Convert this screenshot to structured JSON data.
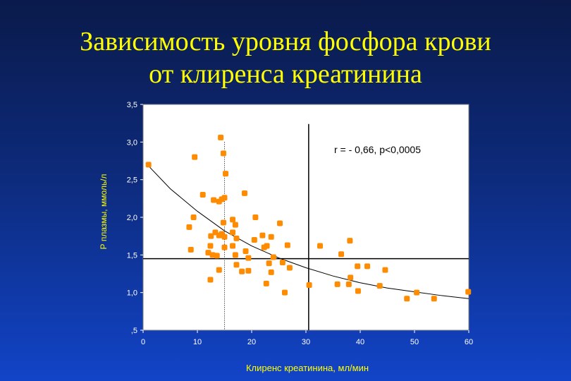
{
  "title_line1": "Зависимость уровня фосфора крови",
  "title_line2": "от клиренса креатинина",
  "chart_data": {
    "type": "scatter",
    "title": "Зависимость уровня фосфора крови от клиренса креатинина",
    "xlabel": "Клиренс креатинина, мл/мин",
    "ylabel": "Р плазмы, ммоль/л",
    "xlim": [
      0,
      60
    ],
    "ylim": [
      0.5,
      3.5
    ],
    "x_ticks": [
      "0",
      "10",
      "20",
      "30",
      "40",
      "50",
      "60"
    ],
    "y_ticks": [
      "3,5",
      "3,0",
      "2,5",
      "2,0",
      "1,5",
      "1,0",
      ",5"
    ],
    "annotation": "r = - 0,66, p<0,0005",
    "reference_lines": {
      "vertical": [
        15,
        30.5
      ],
      "horizontal": [
        1.45
      ]
    },
    "trend": {
      "type": "curve",
      "points": [
        [
          0.5,
          2.72
        ],
        [
          5,
          2.38
        ],
        [
          10,
          2.08
        ],
        [
          15,
          1.82
        ],
        [
          20,
          1.62
        ],
        [
          25,
          1.46
        ],
        [
          30,
          1.33
        ],
        [
          35,
          1.22
        ],
        [
          40,
          1.13
        ],
        [
          45,
          1.06
        ],
        [
          50,
          1.01
        ],
        [
          55,
          0.96
        ],
        [
          60,
          0.92
        ]
      ]
    },
    "marker_color": "#ff8c00",
    "grid": false,
    "points": [
      [
        1,
        2.7
      ],
      [
        9.5,
        2.8
      ],
      [
        14.3,
        3.06
      ],
      [
        14.8,
        2.85
      ],
      [
        15.2,
        2.58
      ],
      [
        11,
        2.3
      ],
      [
        13,
        2.23
      ],
      [
        14,
        2.21
      ],
      [
        14.5,
        2.24
      ],
      [
        15,
        2.26
      ],
      [
        18.7,
        2.32
      ],
      [
        8.5,
        1.87
      ],
      [
        9.3,
        2.0
      ],
      [
        14.8,
        1.93
      ],
      [
        16.5,
        1.97
      ],
      [
        17,
        1.9
      ],
      [
        20.7,
        2.0
      ],
      [
        25.2,
        1.92
      ],
      [
        12.5,
        1.75
      ],
      [
        13.3,
        1.8
      ],
      [
        14,
        1.76
      ],
      [
        14.5,
        1.78
      ],
      [
        15,
        1.74
      ],
      [
        16.5,
        1.8
      ],
      [
        17.2,
        1.72
      ],
      [
        20.5,
        1.7
      ],
      [
        22,
        1.76
      ],
      [
        23.6,
        1.74
      ],
      [
        8.8,
        1.57
      ],
      [
        12,
        1.53
      ],
      [
        12.4,
        1.62
      ],
      [
        12.8,
        1.5
      ],
      [
        13.6,
        1.49
      ],
      [
        15,
        1.6
      ],
      [
        16.5,
        1.62
      ],
      [
        17,
        1.5
      ],
      [
        18.9,
        1.55
      ],
      [
        19.4,
        1.46
      ],
      [
        22.3,
        1.6
      ],
      [
        22.8,
        1.62
      ],
      [
        26.6,
        1.63
      ],
      [
        32.6,
        1.62
      ],
      [
        36.5,
        1.51
      ],
      [
        38.1,
        1.69
      ],
      [
        12.4,
        1.17
      ],
      [
        14,
        1.3
      ],
      [
        17.2,
        1.37
      ],
      [
        18.2,
        1.28
      ],
      [
        19.4,
        1.29
      ],
      [
        22.7,
        1.12
      ],
      [
        23.2,
        1.39
      ],
      [
        23.6,
        1.27
      ],
      [
        24,
        1.47
      ],
      [
        25.7,
        1.4
      ],
      [
        26.1,
        1.0
      ],
      [
        27,
        1.33
      ],
      [
        30.6,
        1.1
      ],
      [
        35.8,
        1.11
      ],
      [
        37.9,
        1.11
      ],
      [
        38.2,
        1.2
      ],
      [
        39.5,
        1.35
      ],
      [
        39.6,
        1.02
      ],
      [
        41.3,
        1.35
      ],
      [
        43.6,
        1.09
      ],
      [
        44.6,
        1.3
      ],
      [
        48.6,
        0.92
      ],
      [
        50.4,
        1.0
      ],
      [
        53.6,
        0.92
      ],
      [
        59.9,
        1.01
      ]
    ]
  }
}
